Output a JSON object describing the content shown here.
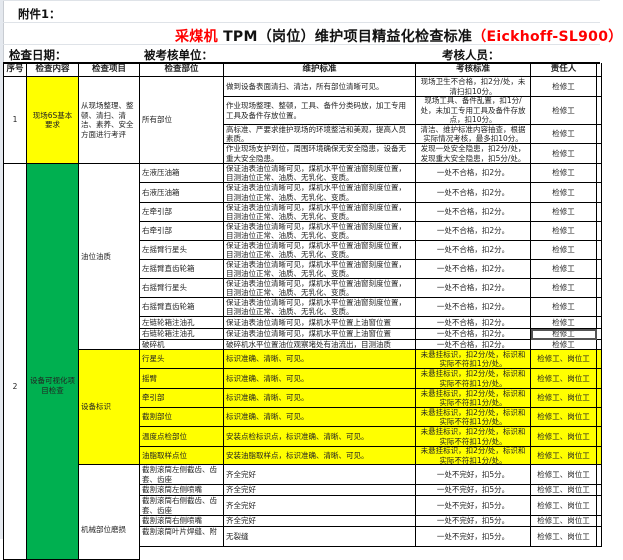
{
  "attachment_label": "附件1：",
  "title": {
    "part1": "采煤机",
    "part2": " TPM（岗位）维护项目精益化检查标准",
    "part3": "（Eickhoff-SL900）"
  },
  "info": {
    "date_label": "检查日期：",
    "unit_label": "被考核单位：",
    "examiner_label": "考核人员："
  },
  "headers": [
    "序号",
    "检查内容",
    "检查项目",
    "检查部位",
    "维护标准",
    "考核标准",
    "责任人"
  ],
  "colors": {
    "yellow": "#ffff00",
    "green": "#00b050",
    "title_red": "#ff0000"
  },
  "section1": {
    "no": "1",
    "content": "现场6S基本要求",
    "item": "从现场整理、整顿、清扫、清洁、素养、安全方面进行考评",
    "part": "所有部位",
    "rows": [
      {
        "standard": "做到设备表面清扫、清洁，所有部位清晰可见。",
        "assessment": "现场卫生不合格，扣2分/处，未清扫扣10分。",
        "owner": "检修工"
      },
      {
        "standard": "作业现场整理、整顿，工具、备件分类码放，加工专用工具及备件存放位置。",
        "assessment": "现场工具、备件乱置，扣1分/处，未加工专用工具及备件存放点，扣10分。",
        "owner": "检修工"
      },
      {
        "standard": "高标准、严要求维护现场的环境整洁和美观，提高人员素质。",
        "assessment": "清洁、维护标准内容抽查，根据实际情况考核，最多扣10分。",
        "owner": "检修工"
      },
      {
        "standard": "作业现场支护到位，周围环境确保无安全隐患，设备无重大安全隐患。",
        "assessment": "发现一处安全隐患，扣2分/处，发现重大安全隐患，扣5分/处。",
        "owner": "检修工"
      }
    ]
  },
  "section2": {
    "no": "2",
    "content": "设备可视化项目检查",
    "oil": {
      "item": "油位油质",
      "rows": [
        {
          "part": "左液压油箱",
          "standard": "保证油表油位清晰可见，煤机水平位置油窗刻度位置，目测油位正常、油质、无乳化、变质。",
          "assessment": "一处不合格，扣2分。",
          "owner": "检修工"
        },
        {
          "part": "右液压油箱",
          "standard": "保证油表油位清晰可见，煤机水平位置油窗刻度位置，目测油位正常、油质、无乳化、变质。",
          "assessment": "一处不合格，扣2分。",
          "owner": "检修工"
        },
        {
          "part": "左牵引部",
          "standard": "保证油表油位清晰可见，煤机水平位置油窗刻度位置，目测油位正常、油质、无乳化、变质。",
          "assessment": "一处不合格，扣2分。",
          "owner": "检修工"
        },
        {
          "part": "右牵引部",
          "standard": "保证油表油位清晰可见，煤机水平位置油窗刻度位置，目测油位正常、油质、无乳化、变质。",
          "assessment": "一处不合格，扣2分。",
          "owner": "检修工"
        },
        {
          "part": "左摇臂行星头",
          "standard": "保证油表油位清晰可见，煤机水平位置油窗刻度位置，目测油位正常、油质、无乳化、变质。",
          "assessment": "一处不合格，扣2分。",
          "owner": "检修工"
        },
        {
          "part": "左摇臂直齿轮箱",
          "standard": "保证油表油位清晰可见，煤机水平位置油窗刻度位置，目测油位正常、油质、无乳化、变质。",
          "assessment": "一处不合格，扣2分。",
          "owner": "检修工"
        },
        {
          "part": "右摇臂行星头",
          "standard": "保证油表油位清晰可见，煤机水平位置油窗刻度位置，目测油位正常、油质、无乳化、变质。",
          "assessment": "一处不合格，扣2分。",
          "owner": "检修工"
        },
        {
          "part": "右摇臂直齿轮箱",
          "standard": "保证油表油位清晰可见，煤机水平位置油窗刻度位置，目测油位正常、油质、无乳化、变质。",
          "assessment": "一处不合格，扣2分。",
          "owner": "检修工"
        },
        {
          "part": "左链轮箱注油孔",
          "standard": "保证油表油位清晰可见，煤机水平位置上油窗位置",
          "assessment": "一处不合格，扣2分。",
          "owner": "检修工"
        },
        {
          "part": "右链轮箱注油孔",
          "standard": "保证油表油位清晰可见，煤机水平位置上油窗位置",
          "assessment": "一处不合格，扣2分。",
          "owner": "检修工"
        },
        {
          "part": "破碎机",
          "standard": "破碎机水平位置油位观察堵处有油流出，目测油质",
          "assessment": "一处不合格，扣2分。",
          "owner": "检修工"
        }
      ]
    },
    "signs": {
      "item": "设备标识",
      "rows": [
        {
          "part": "行星头",
          "standard": "标识准确、清晰、可见。",
          "assessment": "未悬挂标识，扣2分/处，标识和实际不符扣1分/处。",
          "owner": "检修工、岗位工"
        },
        {
          "part": "摇臂",
          "standard": "标识准确、清晰、可见。",
          "assessment": "未悬挂标识，扣2分/处，标识和实际不符扣1分/处。",
          "owner": "检修工、岗位工"
        },
        {
          "part": "牵引部",
          "standard": "标识准确、清晰、可见。",
          "assessment": "未悬挂标识，扣2分/处，标识和实际不符扣1分/处。",
          "owner": "检修工、岗位工"
        },
        {
          "part": "截割部位",
          "standard": "标识准确、清晰、可见。",
          "assessment": "未悬挂标识，扣2分/处，标识和实际不符扣1分/处。",
          "owner": "检修工、岗位工"
        },
        {
          "part": "温度点检部位",
          "standard": "安装点检标识点，标识准确、清晰、可见。",
          "assessment": "未悬挂标识，扣2分/处，标识和实际不符扣1分/处。",
          "owner": "检修工、岗位工"
        },
        {
          "part": "油脂取样点位",
          "standard": "安装油脂取样点，标识准确、清晰、可见。",
          "assessment": "未悬挂标识，扣2分/处，标识和实际不符扣1分/处。",
          "owner": "检修工、岗位工"
        }
      ]
    },
    "wear": {
      "item": "机械部位磨损",
      "rows": [
        {
          "part": "截割滚筒左侧截齿、齿套、齿座",
          "standard": "齐全完好",
          "assessment": "一处不完好，扣5分。",
          "owner": "检修工、岗位工"
        },
        {
          "part": "截割滚筒左侧喷嘴",
          "standard": "齐全完好",
          "assessment": "一处不完好，扣5分。",
          "owner": "检修工、岗位工"
        },
        {
          "part": "截割滚筒右侧截齿、齿套、齿座",
          "standard": "齐全完好",
          "assessment": "一处不完好，扣5分。",
          "owner": "检修工、岗位工"
        },
        {
          "part": "截割滚筒右侧喷嘴",
          "standard": "齐全完好",
          "assessment": "一处不完好，扣5分。",
          "owner": "检修工、岗位工"
        },
        {
          "part": "截割滚筒叶片焊缝、附",
          "standard": "无裂缝",
          "assessment": "一处不完好，扣5分。",
          "owner": "检修工、岗位工"
        }
      ]
    }
  }
}
